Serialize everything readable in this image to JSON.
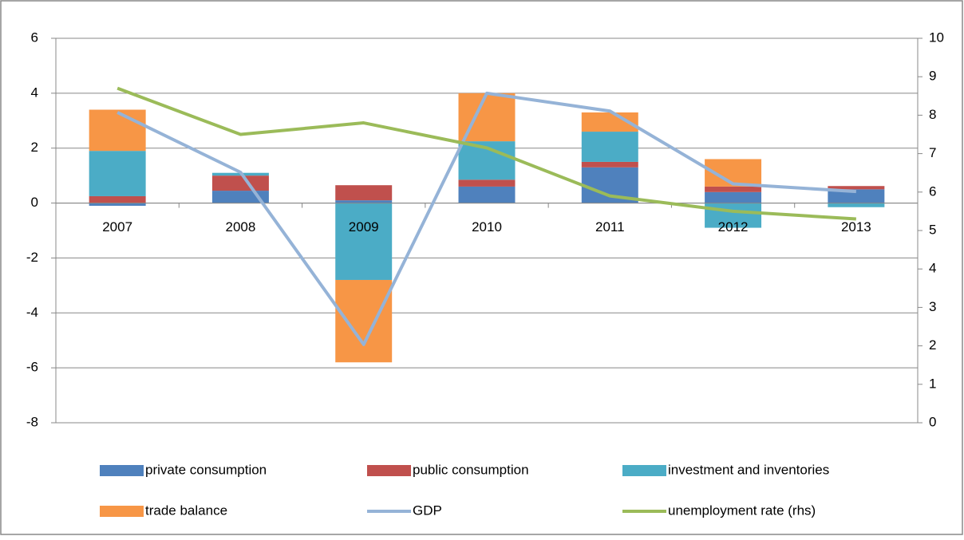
{
  "chart_data": {
    "type": "bar",
    "categories": [
      "2007",
      "2008",
      "2009",
      "2010",
      "2011",
      "2012",
      "2013"
    ],
    "series": [
      {
        "name": "private consumption",
        "color": "#4f81bd",
        "values": [
          -0.1,
          0.45,
          0.1,
          0.6,
          1.3,
          0.4,
          0.5
        ]
      },
      {
        "name": "public consumption",
        "color": "#c0504d",
        "values": [
          0.25,
          0.55,
          0.55,
          0.25,
          0.2,
          0.2,
          0.12
        ]
      },
      {
        "name": "investment and inventories",
        "color": "#4bacc6",
        "values": [
          1.65,
          0.1,
          -2.8,
          1.4,
          1.1,
          -0.9,
          -0.15
        ]
      },
      {
        "name": "trade balance",
        "color": "#f79646",
        "values": [
          1.5,
          0,
          -3.0,
          1.75,
          0.7,
          1.0,
          0
        ]
      },
      {
        "name": "GDP",
        "color": "#95b3d7",
        "type": "line",
        "values": [
          3.3,
          1.12,
          -5.15,
          4.0,
          3.35,
          0.7,
          0.42
        ]
      },
      {
        "name": "unemployment rate (rhs)",
        "color": "#9bbb59",
        "type": "line",
        "axis": "y2",
        "values": [
          8.7,
          7.5,
          7.8,
          7.15,
          5.9,
          5.5,
          5.3
        ]
      }
    ],
    "ylim": [
      -8,
      6
    ],
    "yticks": [
      -8,
      -6,
      -4,
      -2,
      0,
      2,
      4,
      6
    ],
    "y2lim": [
      0,
      10
    ],
    "y2ticks": [
      0,
      1,
      2,
      3,
      4,
      5,
      6,
      7,
      8,
      9,
      10
    ],
    "grid": true,
    "stacked": true,
    "legend": "bottom"
  }
}
